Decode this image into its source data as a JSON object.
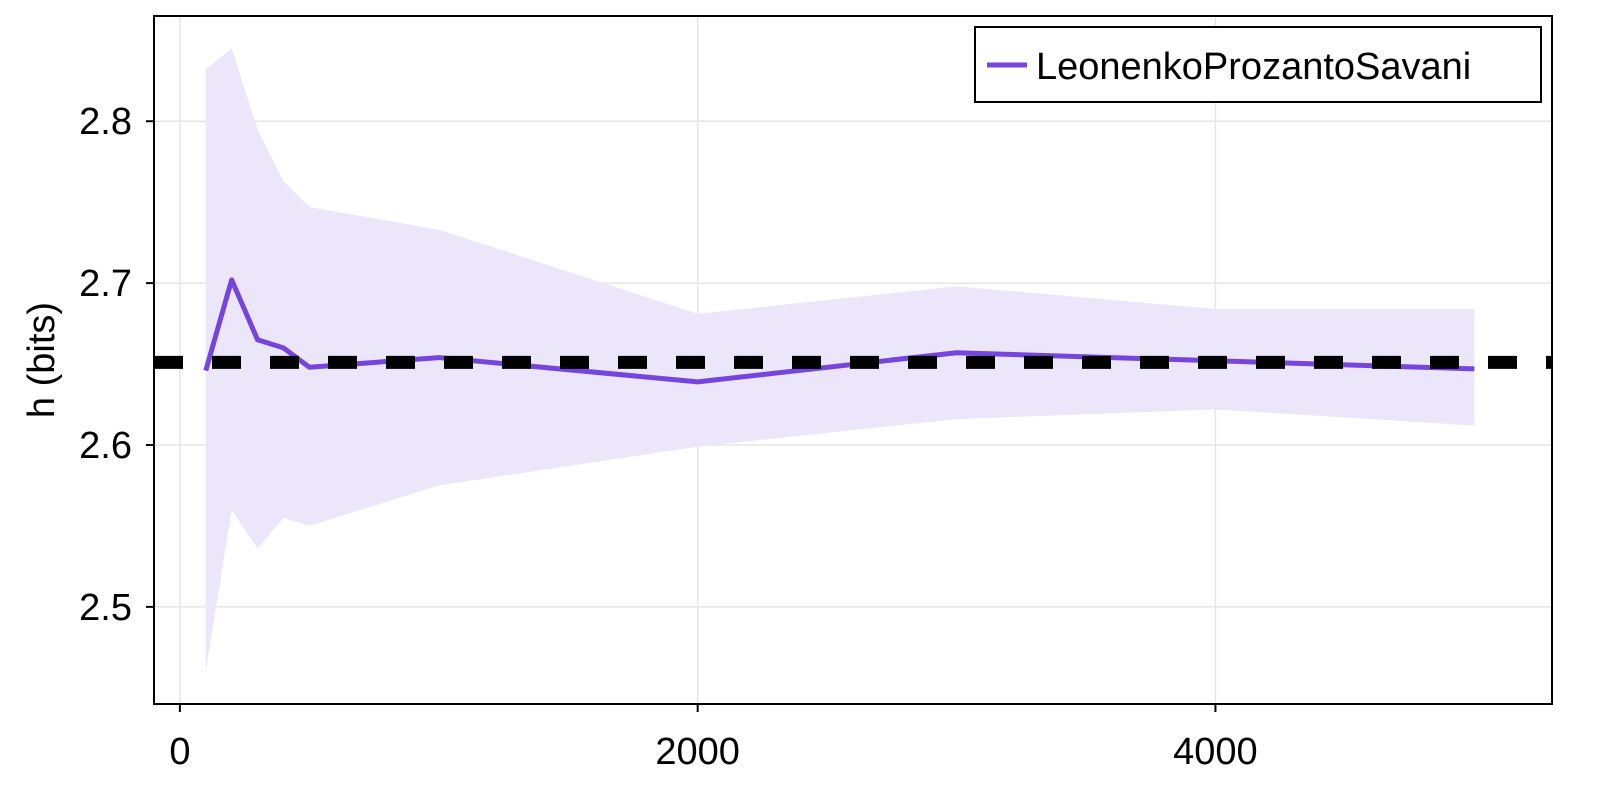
{
  "chart_data": {
    "type": "line",
    "title": "",
    "xlabel": "",
    "ylabel": "h (bits)",
    "xlim": [
      -100,
      5300
    ],
    "ylim": [
      2.44,
      2.865
    ],
    "xticks": [
      0,
      2000,
      4000
    ],
    "xtick_labels": [
      "0",
      "2000",
      "4000"
    ],
    "yticks": [
      2.5,
      2.6,
      2.7,
      2.8
    ],
    "ytick_labels": [
      "2.5",
      "2.6",
      "2.7",
      "2.8"
    ],
    "grid": true,
    "legend_position": "top-right",
    "series": [
      {
        "name": "LeonenkoProzantoSavani",
        "color": "#7744dd",
        "x": [
          100,
          200,
          300,
          400,
          500,
          1000,
          2000,
          3000,
          4000,
          5000
        ],
        "y": [
          2.646,
          2.702,
          2.665,
          2.66,
          2.648,
          2.654,
          2.639,
          2.657,
          2.652,
          2.647
        ],
        "band_upper": [
          2.832,
          2.845,
          2.795,
          2.763,
          2.747,
          2.733,
          2.681,
          2.698,
          2.684,
          2.684
        ],
        "band_lower": [
          2.46,
          2.56,
          2.536,
          2.555,
          2.55,
          2.575,
          2.599,
          2.616,
          2.622,
          2.612
        ],
        "band_color": "#ebe6fa"
      }
    ],
    "reference_line": {
      "y": 2.651,
      "style": "dashed",
      "color": "#000000"
    }
  }
}
